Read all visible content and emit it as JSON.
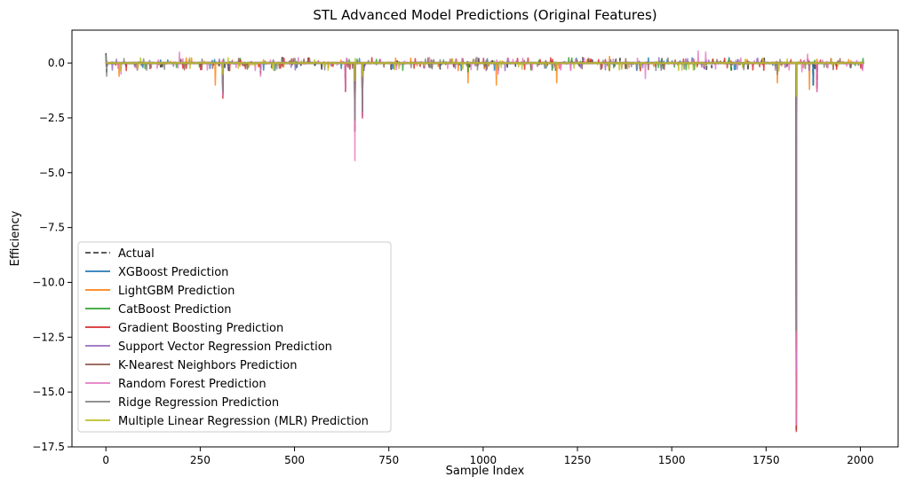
{
  "chart_data": {
    "type": "line",
    "title": "STL Advanced Model Predictions (Original Features)",
    "xlabel": "Sample Index",
    "ylabel": "Efficiency",
    "xlim": [
      -90,
      2100
    ],
    "ylim": [
      -17.5,
      1.5
    ],
    "xticks": [
      0,
      250,
      500,
      750,
      1000,
      1250,
      1500,
      1750,
      2000
    ],
    "yticks": [
      0.0,
      -2.5,
      -5.0,
      -7.5,
      -10.0,
      -12.5,
      -15.0,
      -17.5
    ],
    "xtick_labels": [
      "0",
      "250",
      "500",
      "750",
      "1000",
      "1250",
      "1500",
      "1750",
      "2000"
    ],
    "ytick_labels": [
      "0.0",
      "−2.5",
      "−5.0",
      "−7.5",
      "−10.0",
      "−12.5",
      "−15.0",
      "−17.5"
    ],
    "legend_position": "lower-left",
    "grid": false,
    "n_samples": 2010,
    "series": [
      {
        "name": "Actual",
        "color": "#404040",
        "dash": "dashed",
        "spikes": [
          [
            0,
            0.45
          ],
          [
            2,
            -0.4
          ],
          [
            300,
            -0.2
          ],
          [
            310,
            -1.5
          ],
          [
            410,
            -0.5
          ],
          [
            635,
            -1.2
          ],
          [
            660,
            -3.1
          ],
          [
            680,
            -2.4
          ],
          [
            1830,
            -16.7
          ],
          [
            1875,
            -1.0
          ],
          [
            1885,
            -1.2
          ]
        ]
      },
      {
        "name": "XGBoost Prediction",
        "color": "#1f77b4",
        "dash": "solid",
        "spikes": [
          [
            0,
            0.3
          ],
          [
            310,
            -1.4
          ],
          [
            660,
            -3.0
          ],
          [
            680,
            -2.4
          ],
          [
            1830,
            -15.5
          ],
          [
            1875,
            -1.0
          ]
        ]
      },
      {
        "name": "LightGBM Prediction",
        "color": "#ff7f0e",
        "dash": "solid",
        "spikes": [
          [
            35,
            -0.6
          ],
          [
            290,
            -1.0
          ],
          [
            310,
            -1.4
          ],
          [
            660,
            -3.0
          ],
          [
            680,
            -2.4
          ],
          [
            960,
            -0.9
          ],
          [
            1035,
            -1.0
          ],
          [
            1195,
            -0.9
          ],
          [
            1335,
            0.3
          ],
          [
            1780,
            -0.9
          ],
          [
            1830,
            -15.0
          ],
          [
            1865,
            -1.2
          ]
        ]
      },
      {
        "name": "CatBoost Prediction",
        "color": "#2ca02c",
        "dash": "solid",
        "spikes": [
          [
            0,
            0.3
          ],
          [
            310,
            -1.4
          ],
          [
            660,
            -3.0
          ],
          [
            680,
            -2.4
          ],
          [
            960,
            -0.4
          ],
          [
            1830,
            -15.8
          ]
        ]
      },
      {
        "name": "Gradient Boosting Prediction",
        "color": "#d62728",
        "dash": "solid",
        "spikes": [
          [
            310,
            -1.6
          ],
          [
            635,
            -1.3
          ],
          [
            660,
            -3.0
          ],
          [
            680,
            -2.5
          ],
          [
            1830,
            -16.8
          ],
          [
            1885,
            -1.3
          ]
        ]
      },
      {
        "name": "Support Vector Regression Prediction",
        "color": "#9467bd",
        "dash": "solid",
        "spikes": [
          [
            310,
            -1.3
          ],
          [
            660,
            -2.8
          ],
          [
            680,
            -2.3
          ],
          [
            1830,
            -14.0
          ]
        ]
      },
      {
        "name": "K-Nearest Neighbors Prediction",
        "color": "#8c564b",
        "dash": "solid",
        "spikes": [
          [
            310,
            -1.2
          ],
          [
            660,
            -2.5
          ],
          [
            680,
            -2.0
          ],
          [
            1830,
            -13.0
          ]
        ]
      },
      {
        "name": "Random Forest Prediction",
        "color": "#e377c2",
        "dash": "solid",
        "spikes": [
          [
            40,
            -0.5
          ],
          [
            195,
            0.5
          ],
          [
            310,
            -1.5
          ],
          [
            410,
            -0.6
          ],
          [
            635,
            -1.2
          ],
          [
            660,
            -4.45
          ],
          [
            680,
            -2.5
          ],
          [
            1040,
            -0.5
          ],
          [
            1430,
            -0.7
          ],
          [
            1570,
            0.55
          ],
          [
            1590,
            0.5
          ],
          [
            1830,
            -16.5
          ],
          [
            1845,
            -0.4
          ],
          [
            1860,
            0.4
          ],
          [
            1885,
            -1.3
          ]
        ]
      },
      {
        "name": "Ridge Regression Prediction",
        "color": "#7f7f7f",
        "dash": "solid",
        "spikes": [
          [
            0,
            0.35
          ],
          [
            2,
            -0.6
          ],
          [
            310,
            -1.3
          ],
          [
            660,
            -2.6
          ],
          [
            680,
            -2.2
          ],
          [
            1780,
            -0.5
          ],
          [
            1830,
            -12.2
          ]
        ]
      },
      {
        "name": "Multiple Linear Regression (MLR) Prediction",
        "color": "#bcbd22",
        "dash": "solid",
        "spikes": [
          [
            310,
            -0.5
          ],
          [
            660,
            -0.8
          ],
          [
            680,
            -0.6
          ],
          [
            1830,
            -1.5
          ]
        ]
      }
    ]
  }
}
